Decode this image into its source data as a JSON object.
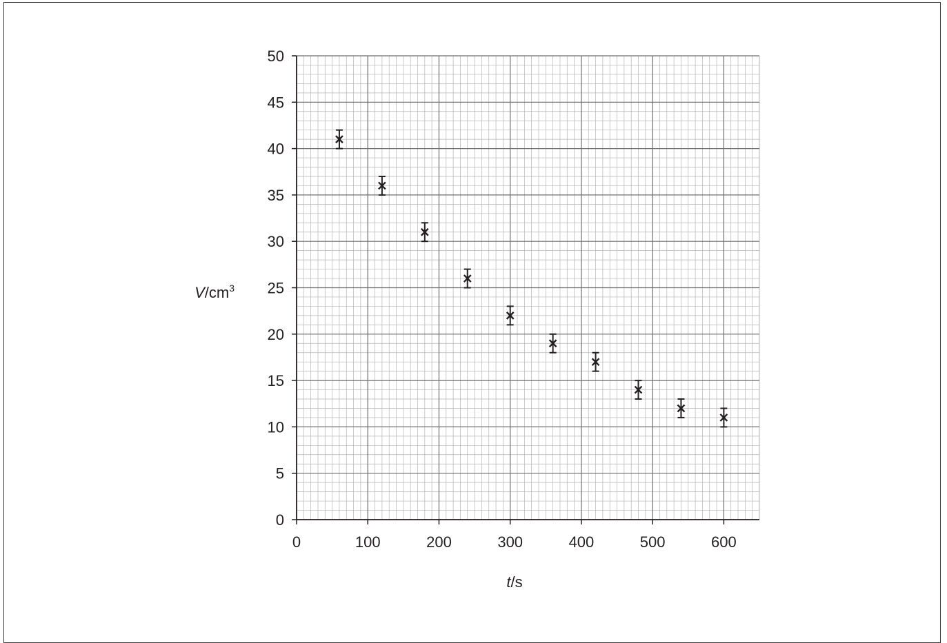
{
  "chart_data": {
    "type": "scatter",
    "title": "",
    "xlabel": {
      "symbol": "t",
      "unit": "s"
    },
    "ylabel": {
      "symbol": "V",
      "unit": "cm",
      "unit_power": "3"
    },
    "xlim": [
      0,
      650
    ],
    "ylim": [
      0,
      50
    ],
    "x_ticks": [
      0,
      100,
      200,
      300,
      400,
      500,
      600
    ],
    "y_ticks": [
      0,
      5,
      10,
      15,
      20,
      25,
      30,
      35,
      40,
      45,
      50
    ],
    "x_minor_step": 10,
    "y_minor_step": 1,
    "grid": true,
    "marker": "x",
    "error_bar": 1,
    "points": [
      {
        "x": 60,
        "y": 41
      },
      {
        "x": 120,
        "y": 36
      },
      {
        "x": 180,
        "y": 31
      },
      {
        "x": 240,
        "y": 26
      },
      {
        "x": 300,
        "y": 22
      },
      {
        "x": 360,
        "y": 19
      },
      {
        "x": 420,
        "y": 17
      },
      {
        "x": 480,
        "y": 14
      },
      {
        "x": 540,
        "y": 12
      },
      {
        "x": 600,
        "y": 11
      }
    ],
    "colors": {
      "minor_grid": "#b3b3b3",
      "major_grid": "#6d6e71",
      "axis": "#231f20",
      "marker": "#231f20"
    }
  }
}
